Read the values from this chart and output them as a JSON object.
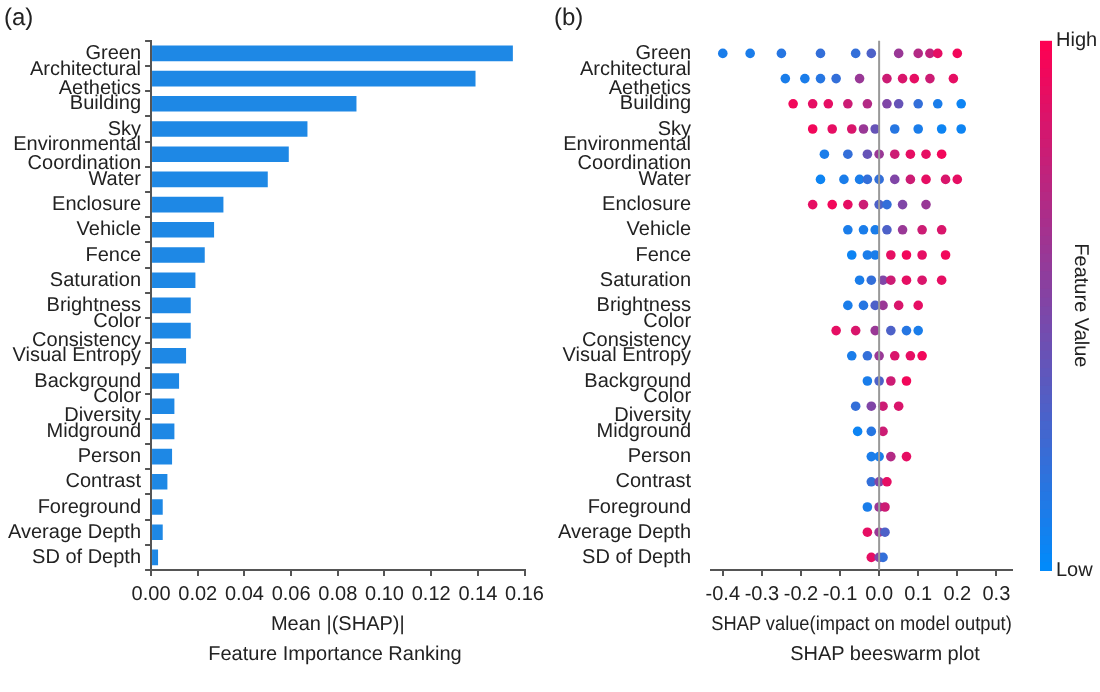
{
  "chart_data": [
    {
      "type": "bar",
      "orientation": "horizontal",
      "title": "(a)",
      "xlabel": "Mean |(SHAP)|",
      "annotations": [
        "Feature Importance Ranking"
      ],
      "categories": [
        "Green",
        "Architectural\nAethetics",
        "Building",
        "Sky",
        "Environmental\nCoordination",
        "Water",
        "Enclosure",
        "Vehicle",
        "Fence",
        "Saturation",
        "Brightness",
        "Color\nConsistency",
        "Visual Entropy",
        "Background",
        "Color\nDiversity",
        "Midground",
        "Person",
        "Contrast",
        "Foreground",
        "Average Depth",
        "SD of Depth"
      ],
      "values": [
        0.155,
        0.139,
        0.088,
        0.067,
        0.059,
        0.05,
        0.031,
        0.027,
        0.023,
        0.019,
        0.017,
        0.017,
        0.015,
        0.012,
        0.01,
        0.01,
        0.009,
        0.007,
        0.005,
        0.005,
        0.003
      ],
      "color": "#1e88e5",
      "xlim": [
        0,
        0.16
      ],
      "xticks": [
        {
          "value": 0,
          "label": "0.00"
        },
        {
          "value": 0.02,
          "label": "0.02"
        },
        {
          "value": 0.04,
          "label": "0.04"
        },
        {
          "value": 0.06,
          "label": "0.06"
        },
        {
          "value": 0.08,
          "label": "0.08"
        },
        {
          "value": 0.1,
          "label": "0.10"
        },
        {
          "value": 0.12,
          "label": "0.12"
        },
        {
          "value": 0.14,
          "label": "0.14"
        },
        {
          "value": 0.16,
          "label": "0.16"
        }
      ],
      "grid": false,
      "legend": false
    },
    {
      "type": "scatter",
      "orientation": "horizontal",
      "title": "(b)",
      "xlabel": "SHAP value(impact on model output)",
      "annotations": [
        "SHAP beeswarm plot"
      ],
      "clabel": "Feature Value",
      "categories": [
        "Green",
        "Architectural\nAethetics",
        "Building",
        "Sky",
        "Environmental\nCoordination",
        "Water",
        "Enclosure",
        "Vehicle",
        "Fence",
        "Saturation",
        "Brightness",
        "Color\nConsistency",
        "Visual Entropy",
        "Background",
        "Color\nDiversity",
        "Midground",
        "Person",
        "Contrast",
        "Foreground",
        "Average Depth",
        "SD of Depth"
      ],
      "series": [
        {
          "x": [
            "Green",
            "Green",
            "Green",
            "Green",
            "Green",
            "Green",
            "Green",
            "Green",
            "Green",
            "Green",
            "Green",
            "Architectural\nAethetics",
            "Architectural\nAethetics",
            "Architectural\nAethetics",
            "Architectural\nAethetics",
            "Architectural\nAethetics",
            "Architectural\nAethetics",
            "Architectural\nAethetics",
            "Architectural\nAethetics",
            "Architectural\nAethetics",
            "Architectural\nAethetics",
            "Building",
            "Building",
            "Building",
            "Building",
            "Building",
            "Building",
            "Building",
            "Building",
            "Building",
            "Building",
            "Sky",
            "Sky",
            "Sky",
            "Sky",
            "Sky",
            "Sky",
            "Sky",
            "Sky",
            "Sky",
            "Environmental\nCoordination",
            "Environmental\nCoordination",
            "Environmental\nCoordination",
            "Environmental\nCoordination",
            "Environmental\nCoordination",
            "Environmental\nCoordination",
            "Environmental\nCoordination",
            "Environmental\nCoordination",
            "Water",
            "Water",
            "Water",
            "Water",
            "Water",
            "Water",
            "Water",
            "Water",
            "Water",
            "Water",
            "Enclosure",
            "Enclosure",
            "Enclosure",
            "Enclosure",
            "Enclosure",
            "Enclosure",
            "Enclosure",
            "Enclosure",
            "Vehicle",
            "Vehicle",
            "Vehicle",
            "Vehicle",
            "Vehicle",
            "Vehicle",
            "Vehicle",
            "Fence",
            "Fence",
            "Fence",
            "Fence",
            "Fence",
            "Fence",
            "Fence",
            "Saturation",
            "Saturation",
            "Saturation",
            "Saturation",
            "Saturation",
            "Saturation",
            "Saturation",
            "Brightness",
            "Brightness",
            "Brightness",
            "Brightness",
            "Brightness",
            "Brightness",
            "Color\nConsistency",
            "Color\nConsistency",
            "Color\nConsistency",
            "Color\nConsistency",
            "Color\nConsistency",
            "Color\nConsistency",
            "Visual Entropy",
            "Visual Entropy",
            "Visual Entropy",
            "Visual Entropy",
            "Visual Entropy",
            "Visual Entropy",
            "Background",
            "Background",
            "Background",
            "Background",
            "Color\nDiversity",
            "Color\nDiversity",
            "Color\nDiversity",
            "Color\nDiversity",
            "Midground",
            "Midground",
            "Midground",
            "Person",
            "Person",
            "Person",
            "Person",
            "Contrast",
            "Contrast",
            "Contrast",
            "Foreground",
            "Foreground",
            "Foreground",
            "Average Depth",
            "Average Depth",
            "Average Depth",
            "SD of Depth",
            "SD of Depth",
            "SD of Depth"
          ],
          "values": [
            -0.4,
            -0.33,
            -0.25,
            -0.15,
            -0.06,
            -0.02,
            0.05,
            0.1,
            0.13,
            0.15,
            0.2,
            -0.24,
            -0.19,
            -0.15,
            -0.11,
            -0.05,
            0.02,
            0.06,
            0.09,
            0.13,
            0.19,
            -0.22,
            -0.17,
            -0.13,
            -0.08,
            -0.03,
            0.02,
            0.05,
            0.1,
            0.15,
            0.21,
            -0.17,
            -0.12,
            -0.07,
            -0.04,
            -0.01,
            0.04,
            0.1,
            0.16,
            0.21,
            -0.14,
            -0.08,
            -0.03,
            0,
            0.04,
            0.08,
            0.12,
            0.16,
            -0.15,
            -0.09,
            -0.05,
            -0.03,
            0,
            0.04,
            0.08,
            0.12,
            0.17,
            0.2,
            -0.17,
            -0.12,
            -0.08,
            -0.04,
            0,
            0.02,
            0.06,
            0.12,
            -0.08,
            -0.04,
            -0.01,
            0.02,
            0.06,
            0.11,
            0.16,
            -0.07,
            -0.03,
            -0.01,
            0.03,
            0.07,
            0.11,
            0.17,
            -0.05,
            -0.02,
            0.01,
            0.03,
            0.07,
            0.11,
            0.16,
            -0.08,
            -0.04,
            -0.01,
            0.01,
            0.05,
            0.1,
            -0.11,
            -0.06,
            -0.01,
            0.03,
            0.07,
            0.1,
            -0.07,
            -0.03,
            0,
            0.04,
            0.08,
            0.11,
            -0.03,
            0,
            0.03,
            0.07,
            -0.06,
            -0.02,
            0.01,
            0.05,
            -0.055,
            -0.02,
            0.01,
            -0.02,
            0,
            0.03,
            0.07,
            -0.02,
            0,
            0.02,
            -0.03,
            0,
            0.015,
            -0.03,
            0,
            0.015,
            -0.02,
            0,
            0.01
          ],
          "cvalues": [
            0.1,
            0.1,
            0.15,
            0.2,
            0.2,
            0.3,
            0.6,
            0.7,
            0.75,
            0.9,
            0.95,
            0.1,
            0.1,
            0.15,
            0.2,
            0.6,
            0.8,
            0.85,
            0.9,
            0.8,
            0.9,
            0.95,
            0.9,
            0.9,
            0.8,
            0.7,
            0.5,
            0.4,
            0.2,
            0.1,
            0.05,
            0.95,
            0.9,
            0.85,
            0.6,
            0.4,
            0.15,
            0.1,
            0.05,
            0.05,
            0.1,
            0.2,
            0.4,
            0.6,
            0.8,
            0.9,
            0.9,
            0.95,
            0.05,
            0.1,
            0.1,
            0.2,
            0.2,
            0.5,
            0.8,
            0.9,
            0.85,
            0.9,
            0.9,
            0.95,
            0.9,
            0.8,
            0.3,
            0.2,
            0.5,
            0.6,
            0.1,
            0.1,
            0.1,
            0.3,
            0.6,
            0.8,
            0.85,
            0.05,
            0.1,
            0.1,
            0.9,
            0.95,
            0.9,
            0.95,
            0.1,
            0.2,
            0.5,
            0.8,
            0.9,
            0.85,
            0.9,
            0.1,
            0.15,
            0.3,
            0.6,
            0.85,
            0.9,
            0.9,
            0.85,
            0.6,
            0.3,
            0.15,
            0.1,
            0.1,
            0.2,
            0.6,
            0.85,
            0.9,
            0.95,
            0.1,
            0.3,
            0.8,
            0.95,
            0.2,
            0.5,
            0.8,
            0.85,
            0.05,
            0.15,
            0.8,
            0.1,
            0.1,
            0.7,
            0.9,
            0.2,
            0.5,
            0.9,
            0.1,
            0.6,
            0.8,
            0.9,
            0.6,
            0.3,
            0.9,
            0.5,
            0.2
          ]
        }
      ],
      "clim": [
        0,
        1
      ],
      "cticks": [
        {
          "value": 0,
          "label": "Low"
        },
        {
          "value": 1,
          "label": "High"
        }
      ],
      "ref_lines": [
        {
          "axis": "x",
          "value": 0,
          "color": "#999999"
        }
      ],
      "xlim": [
        -0.43,
        0.34
      ],
      "xticks": [
        -0.4,
        -0.3,
        -0.2,
        -0.1,
        {
          "value": 0,
          "label": "0.0"
        },
        0.1,
        0.2,
        0.3
      ],
      "grid": false,
      "legend": false
    }
  ]
}
